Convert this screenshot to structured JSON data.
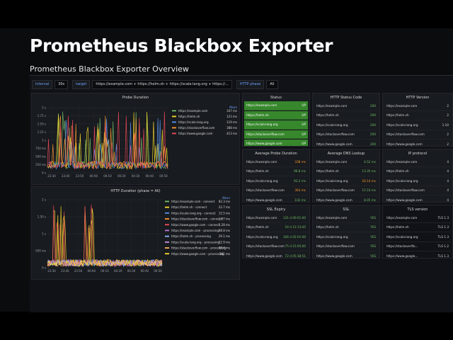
{
  "slide": {
    "title": "Prometheus Blackbox Exporter",
    "subtitle": "Prometheus Blackbox Exporter Overview"
  },
  "variables": {
    "interval_label": "Interval",
    "interval_value": "30s",
    "target_label": "target",
    "target_value": "https://example.com + https://helm.sh + https://scala-lang.org + https://...",
    "phase_label": "HTTP phase",
    "phase_value": "All"
  },
  "probe_duration": {
    "title": "Probe Duration",
    "legend_header": "Mean",
    "legend": [
      {
        "name": "https://example.com",
        "value": "347 ms",
        "color": "#73bf69"
      },
      {
        "name": "https://helm.sh",
        "value": "123 ms",
        "color": "#fade2a"
      },
      {
        "name": "https://scala-lang.org",
        "value": "119 ms",
        "color": "#5794f2"
      },
      {
        "name": "https://stackoverflow.com",
        "value": "388 ms",
        "color": "#ff9830"
      },
      {
        "name": "https://www.google.com",
        "value": "413 ms",
        "color": "#f2495c"
      }
    ],
    "y_ticks": [
      "2 s",
      "1.75 s",
      "1.50 s",
      "1.25 s",
      "1 s",
      "750 ms",
      "500 ms",
      "250 ms",
      "0 s"
    ],
    "x_ticks": [
      "23:30",
      "23:40",
      "23:50",
      "00:00",
      "00:10",
      "00:20",
      "00:30",
      "00:40",
      "00:50"
    ]
  },
  "http_duration": {
    "title": "HTTP Duration (phase = All)",
    "legend_header": "Mean",
    "legend": [
      {
        "name": "https://example.com - connect",
        "value": "82.3 ms",
        "color": "#73bf69"
      },
      {
        "name": "https://helm.sh - connect",
        "value": "22.7 ms",
        "color": "#fade2a"
      },
      {
        "name": "https://scala-lang.org - connect",
        "value": "12.5 ms",
        "color": "#5794f2"
      },
      {
        "name": "https://stackoverflow.com - connect",
        "value": "1.97 ms",
        "color": "#ff9830"
      },
      {
        "name": "https://www.google.com - connect",
        "value": "1.28 ms",
        "color": "#f2495c"
      },
      {
        "name": "https://example.com - processing",
        "value": "88.8 ms",
        "color": "#b877d9"
      },
      {
        "name": "https://helm.sh - processing",
        "value": "29.1 ms",
        "color": "#8ab8ff"
      },
      {
        "name": "https://scala-lang.org - processing",
        "value": "12.9 ms",
        "color": "#ca95e5"
      },
      {
        "name": "https://stackoverflow.com - processing",
        "value": "98.4 ms",
        "color": "#ffb357"
      },
      {
        "name": "https://www.google.com - processing",
        "value": "291 ms",
        "color": "#fade2a"
      }
    ],
    "y_ticks": [
      "2 s",
      "1.50 s",
      "1 s",
      "500 ms",
      "0 s"
    ],
    "x_ticks": [
      "23:30",
      "23:40",
      "23:50",
      "00:00",
      "00:10",
      "00:20",
      "00:30",
      "00:40",
      "00:50"
    ]
  },
  "status": {
    "title": "Status",
    "rows": [
      {
        "name": "https://example.com",
        "value": "UP"
      },
      {
        "name": "https://helm.sh",
        "value": "UP"
      },
      {
        "name": "https://scala-lang.org",
        "value": "UP"
      },
      {
        "name": "https://stackoverflow.com",
        "value": "UP"
      },
      {
        "name": "https://www.google.com",
        "value": "UP"
      }
    ]
  },
  "http_status": {
    "title": "HTTP Status Code",
    "rows": [
      {
        "name": "https://example.com",
        "value": "200"
      },
      {
        "name": "https://helm.sh",
        "value": "200"
      },
      {
        "name": "https://scala-lang.org",
        "value": "200"
      },
      {
        "name": "https://stackoverflow.com",
        "value": "200"
      },
      {
        "name": "https://www.google.com",
        "value": "200"
      }
    ]
  },
  "http_version": {
    "title": "HTTP Version",
    "rows": [
      {
        "name": "https://example.com",
        "value": "2"
      },
      {
        "name": "https://helm.sh",
        "value": "2"
      },
      {
        "name": "https://scala-lang.org",
        "value": "1.10"
      },
      {
        "name": "https://stackoverflow.com",
        "value": "2"
      },
      {
        "name": "https://www.google.com",
        "value": "2"
      }
    ]
  },
  "avg_probe": {
    "title": "Average Probe Duration",
    "rows": [
      {
        "name": "https://example.com",
        "value": "338 ms",
        "tone": "o"
      },
      {
        "name": "https://helm.sh",
        "value": "96.8 ms",
        "tone": "g"
      },
      {
        "name": "https://scala-lang.org",
        "value": "93.2 ms",
        "tone": "g"
      },
      {
        "name": "https://stackoverflow.com",
        "value": "363 ms",
        "tone": "o"
      },
      {
        "name": "https://www.google.com",
        "value": "102 ms",
        "tone": "g"
      }
    ]
  },
  "avg_dns": {
    "title": "Average DNS Lookup",
    "rows": [
      {
        "name": "https://example.com",
        "value": "4.52 ms",
        "tone": "g"
      },
      {
        "name": "https://helm.sh",
        "value": "13.35 ms",
        "tone": "g"
      },
      {
        "name": "https://scala-lang.org",
        "value": "20.14 ms",
        "tone": "o"
      },
      {
        "name": "https://stackoverflow.com",
        "value": "15.10 ms",
        "tone": "g"
      },
      {
        "name": "https://www.google.com",
        "value": "8.05 ms",
        "tone": "g"
      }
    ]
  },
  "ip_protocol": {
    "title": "IP protocol",
    "rows": [
      {
        "name": "https://example.com",
        "value": "4"
      },
      {
        "name": "https://helm.sh",
        "value": "4"
      },
      {
        "name": "https://scala-lang.org",
        "value": "4"
      },
      {
        "name": "https://stackoverflow.com",
        "value": "4"
      },
      {
        "name": "https://www.google.com",
        "value": "4"
      }
    ]
  },
  "ssl_expiry": {
    "title": "SSL Expiry",
    "rows": [
      {
        "name": "https://example.com",
        "value": "131 d 00:01:00"
      },
      {
        "name": "https://helm.sh",
        "value": "54 d 12:13:45"
      },
      {
        "name": "https://scala-lang.org",
        "value": "106 d 02:01:00"
      },
      {
        "name": "https://stackoverflow.com",
        "value": "75 d 15:05:00"
      },
      {
        "name": "https://www.google.com",
        "value": "72 d 05:38:51"
      }
    ]
  },
  "ssl": {
    "title": "SSL",
    "rows": [
      {
        "name": "https://example.com",
        "value": "YES"
      },
      {
        "name": "https://helm.sh",
        "value": "YES"
      },
      {
        "name": "https://scala-lang.org",
        "value": "YES"
      },
      {
        "name": "https://stackoverflow.com",
        "value": "YES"
      },
      {
        "name": "https://www.google.com",
        "value": "YES"
      }
    ]
  },
  "tls_version": {
    "title": "TLS version",
    "rows": [
      {
        "name": "https://example.com",
        "value": "TLS 1.3"
      },
      {
        "name": "https://helm.sh",
        "value": "TLS 1.3"
      },
      {
        "name": "https://scala-lang.org",
        "value": "TLS 1.3"
      },
      {
        "name": "https://stackoverflo...",
        "value": "TLS 1.2"
      },
      {
        "name": "https://www.google...",
        "value": "TLS 1.3"
      }
    ]
  }
}
